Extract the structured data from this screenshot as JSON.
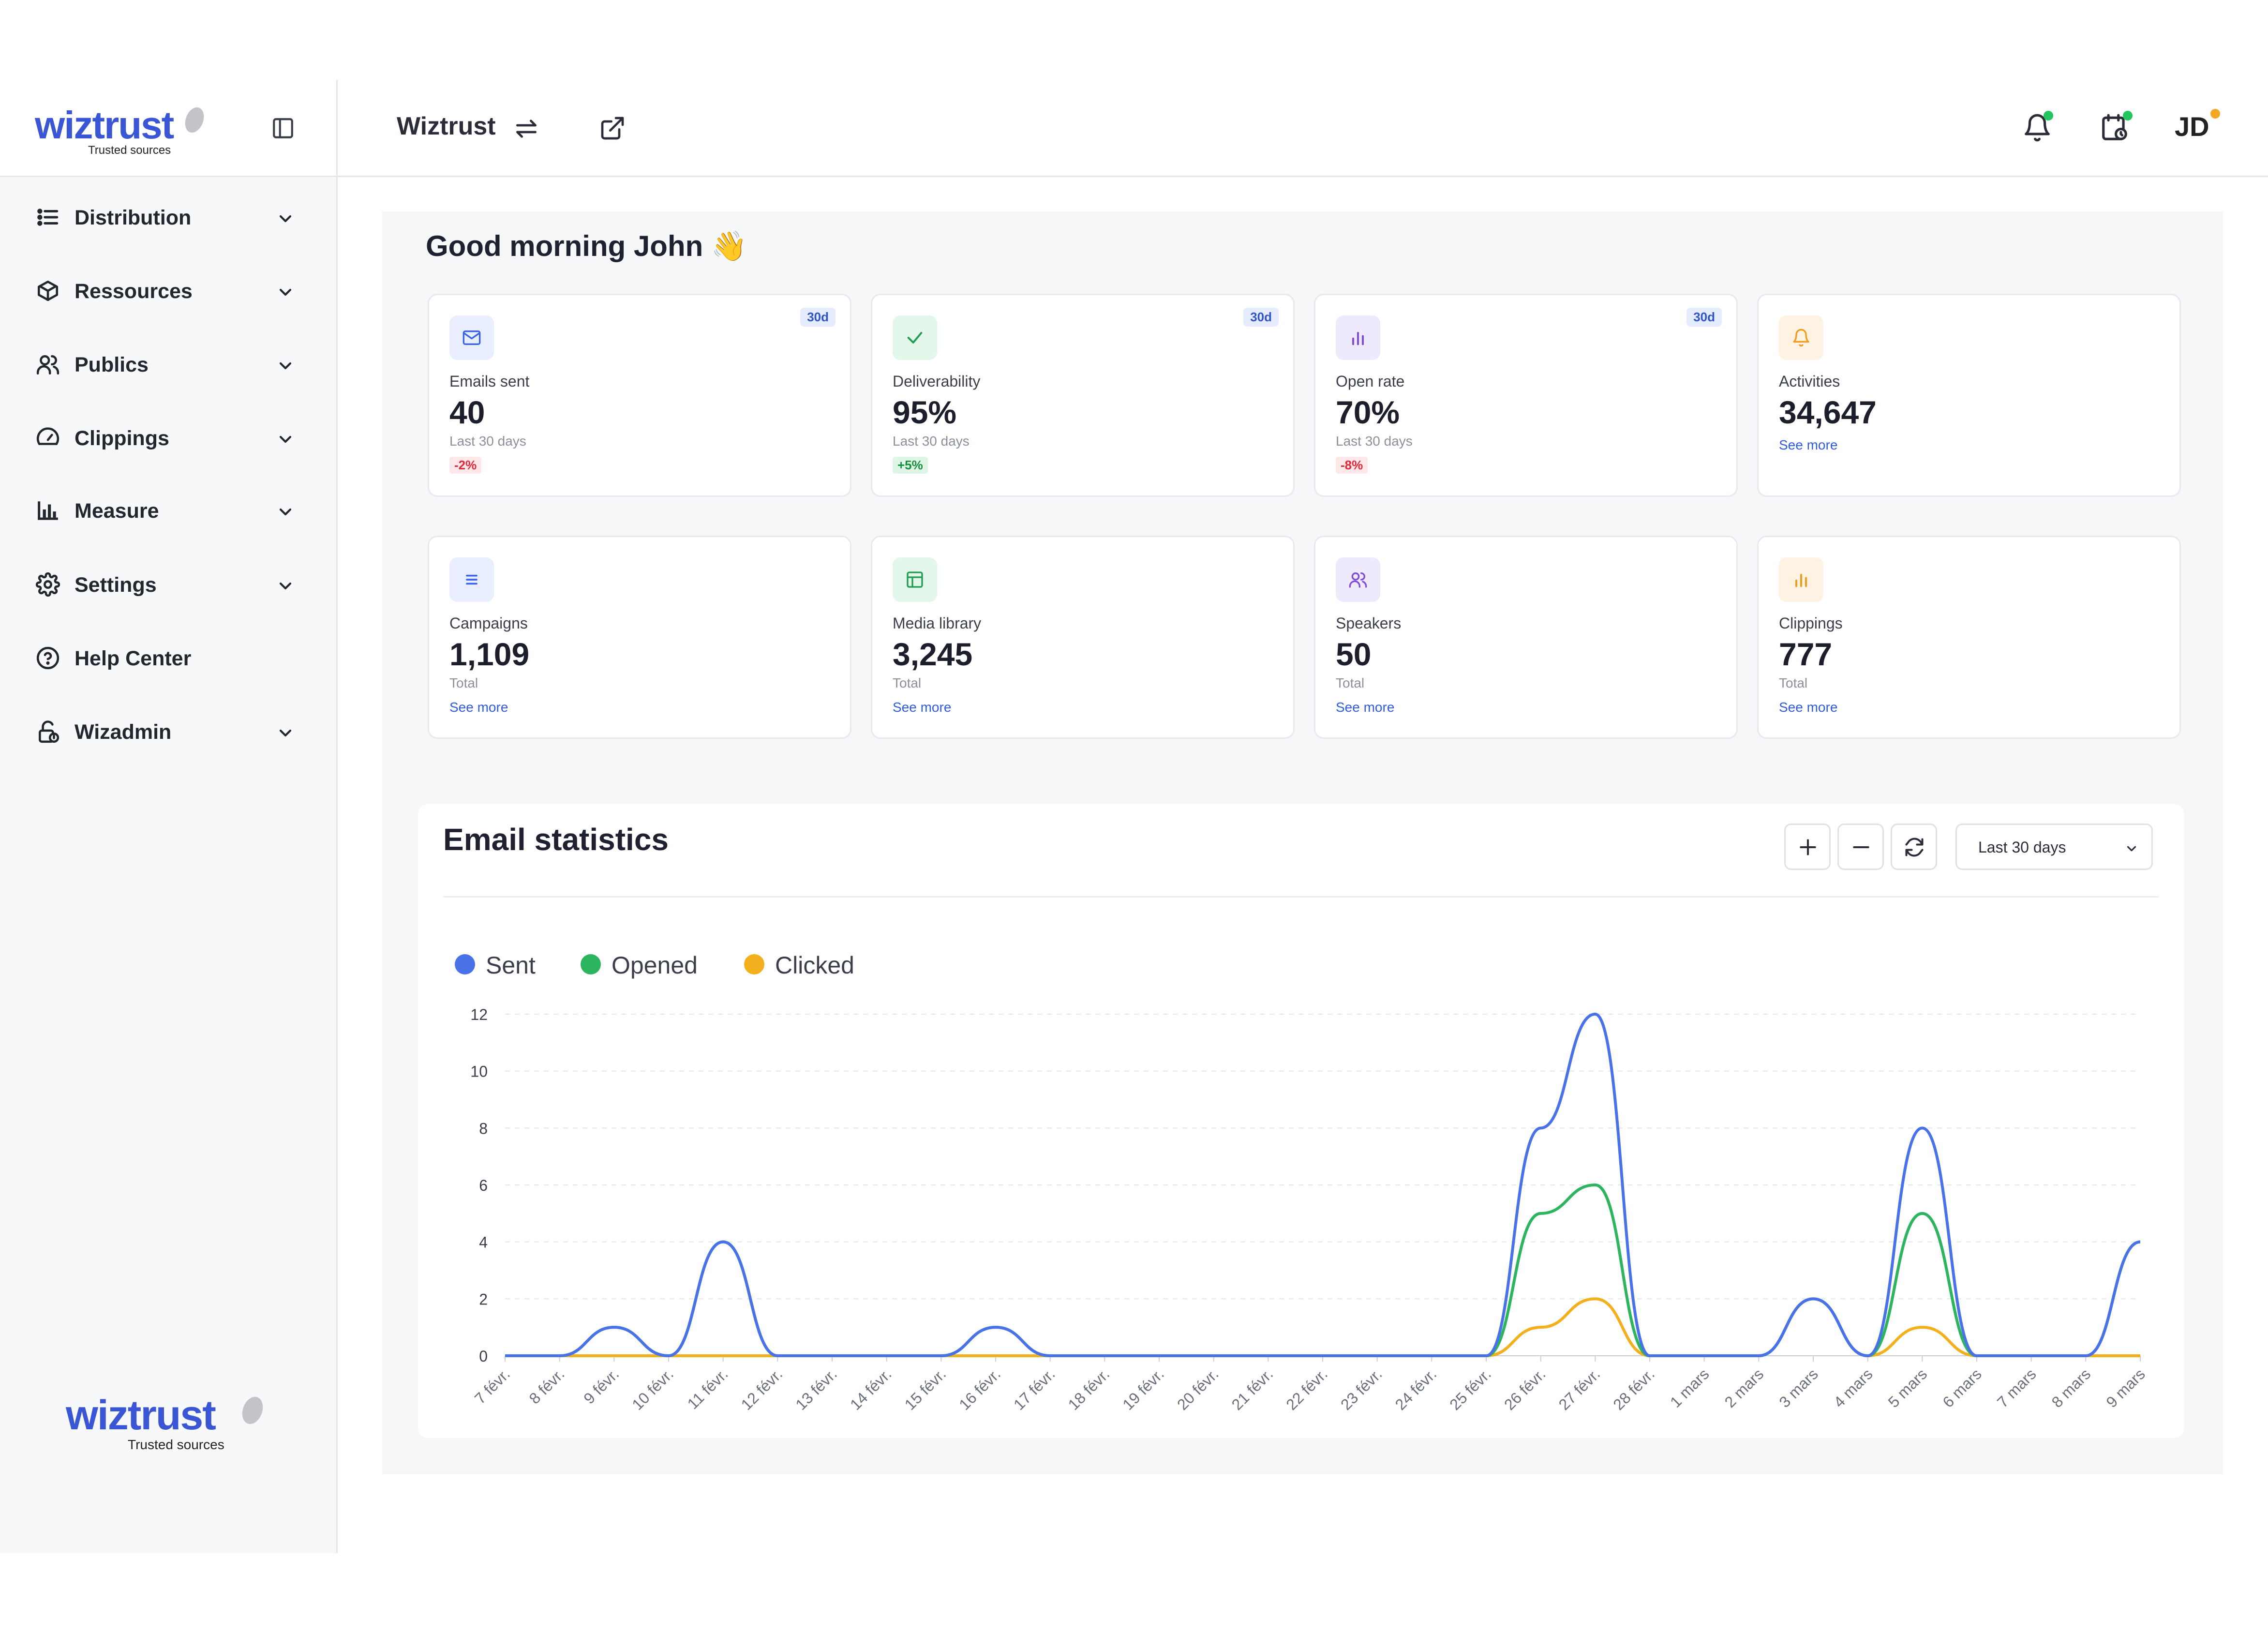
{
  "header": {
    "brand": "wiztrust",
    "brand_tagline": "Trusted sources",
    "workspace": "Wiztrust",
    "user_initials": "JD",
    "notification_dot_color": "#22c55e",
    "calendar_dot_color": "#22c55e",
    "user_dot_color": "#f5a623"
  },
  "sidebar": {
    "items": [
      {
        "label": "Distribution",
        "icon": "list-icon",
        "expandable": true
      },
      {
        "label": "Ressources",
        "icon": "box-icon",
        "expandable": true
      },
      {
        "label": "Publics",
        "icon": "users-icon",
        "expandable": true
      },
      {
        "label": "Clippings",
        "icon": "gauge-icon",
        "expandable": true
      },
      {
        "label": "Measure",
        "icon": "bar-chart-icon",
        "expandable": true
      },
      {
        "label": "Settings",
        "icon": "gear-icon",
        "expandable": true
      },
      {
        "label": "Help Center",
        "icon": "help-circle-icon",
        "expandable": false
      },
      {
        "label": "Wizadmin",
        "icon": "lock-icon",
        "expandable": true
      }
    ],
    "footer_brand": "wiztrust",
    "footer_tagline": "Trusted sources"
  },
  "main": {
    "greeting": "Good morning John 👋",
    "cards": [
      {
        "label": "Emails sent",
        "value": "40",
        "sub": "Last 30 days",
        "badge": "30d",
        "change": "-2%",
        "trend": "down",
        "icon": "mail-icon",
        "tint": "#e8eefd",
        "color": "#3b63e6"
      },
      {
        "label": "Deliverability",
        "value": "95%",
        "sub": "Last 30 days",
        "badge": "30d",
        "change": "+5%",
        "trend": "up",
        "icon": "check-icon",
        "tint": "#e3f6ea",
        "color": "#1f9d55"
      },
      {
        "label": "Open rate",
        "value": "70%",
        "sub": "Last 30 days",
        "badge": "30d",
        "change": "-8%",
        "trend": "down",
        "icon": "bar-chart-icon",
        "tint": "#efe9fd",
        "color": "#7c4ddb"
      },
      {
        "label": "Activities",
        "value": "34,647",
        "more": "See more",
        "icon": "bell-icon",
        "tint": "#fef3e2",
        "color": "#f29b1e"
      },
      {
        "label": "Campaigns",
        "value": "1,109",
        "sub": "Total",
        "more": "See more",
        "icon": "list-icon",
        "tint": "#e8eefd",
        "color": "#3b63e6"
      },
      {
        "label": "Media library",
        "value": "3,245",
        "sub": "Total",
        "more": "See more",
        "icon": "layout-icon",
        "tint": "#e3f6ea",
        "color": "#1f9d55"
      },
      {
        "label": "Speakers",
        "value": "50",
        "sub": "Total",
        "more": "See more",
        "icon": "users-icon",
        "tint": "#efe9fd",
        "color": "#7c4ddb"
      },
      {
        "label": "Clippings",
        "value": "777",
        "sub": "Total",
        "more": "See more",
        "icon": "bar-chart-icon",
        "tint": "#fef3e2",
        "color": "#f29b1e"
      }
    ],
    "stats_title": "Email statistics",
    "range_select": "Last 30 days"
  },
  "chart_data": {
    "type": "line",
    "title": "Email statistics",
    "xlabel": "",
    "ylabel": "",
    "ylim": [
      0,
      12
    ],
    "yticks": [
      0,
      2,
      4,
      6,
      8,
      10,
      12
    ],
    "grid": true,
    "legend_position": "top-left",
    "categories": [
      "7 févr.",
      "8 févr.",
      "9 févr.",
      "10 févr.",
      "11 févr.",
      "12 févr.",
      "13 févr.",
      "14 févr.",
      "15 févr.",
      "16 févr.",
      "17 févr.",
      "18 févr.",
      "19 févr.",
      "20 févr.",
      "21 févr.",
      "22 févr.",
      "23 févr.",
      "24 févr.",
      "25 févr.",
      "26 févr.",
      "27 févr.",
      "28 févr.",
      "1 mars",
      "2 mars",
      "3 mars",
      "4 mars",
      "5 mars",
      "6 mars",
      "7 mars",
      "8 mars",
      "9 mars"
    ],
    "series": [
      {
        "name": "Sent",
        "color": "#4a72e8",
        "values": [
          0,
          0,
          1,
          0,
          4,
          0,
          0,
          0,
          0,
          1,
          0,
          0,
          0,
          0,
          0,
          0,
          0,
          0,
          0,
          8,
          12,
          0,
          0,
          0,
          2,
          0,
          8,
          0,
          0,
          0,
          4
        ]
      },
      {
        "name": "Opened",
        "color": "#2cb55e",
        "values": [
          0,
          0,
          1,
          0,
          4,
          0,
          0,
          0,
          0,
          1,
          0,
          0,
          0,
          0,
          0,
          0,
          0,
          0,
          0,
          5,
          6,
          0,
          0,
          0,
          2,
          0,
          5,
          0,
          0,
          0,
          4
        ]
      },
      {
        "name": "Clicked",
        "color": "#f2b01e",
        "values": [
          0,
          0,
          0,
          0,
          0,
          0,
          0,
          0,
          0,
          0,
          0,
          0,
          0,
          0,
          0,
          0,
          0,
          0,
          0,
          1,
          2,
          0,
          0,
          0,
          2,
          0,
          1,
          0,
          0,
          0,
          0
        ]
      }
    ]
  }
}
